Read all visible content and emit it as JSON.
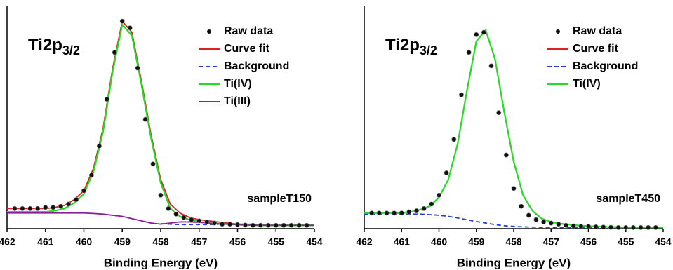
{
  "chart_data": [
    {
      "type": "line",
      "xlabel": "Binding Energy (eV)",
      "annotation": {
        "text": "Ti2p",
        "subscript": "3/2"
      },
      "sample": "sampleT150",
      "xlim": [
        462,
        454
      ],
      "ylim": [
        0,
        100
      ],
      "xticks": [
        462,
        461,
        460,
        459,
        458,
        457,
        456,
        455,
        454
      ],
      "legend": "upper right",
      "series": [
        {
          "name": "Raw data",
          "color": "#000000",
          "style": "marker",
          "x": [
            461.8,
            461.6,
            461.4,
            461.2,
            461.0,
            460.8,
            460.6,
            460.4,
            460.2,
            460.0,
            459.8,
            459.6,
            459.4,
            459.2,
            459.0,
            458.8,
            458.6,
            458.4,
            458.2,
            458.0,
            457.8,
            457.6,
            457.4,
            457.2,
            457.0,
            456.8,
            456.6,
            456.4,
            456.2,
            456.0,
            455.8,
            455.6,
            455.4,
            455.2,
            455.0,
            454.8,
            454.6,
            454.4,
            454.2
          ],
          "values": [
            9,
            9,
            9,
            9,
            9.5,
            9.5,
            10,
            11,
            13,
            17,
            24,
            37,
            58,
            79,
            93,
            90,
            72,
            49,
            29,
            15,
            9,
            6.5,
            5,
            4,
            3.5,
            3,
            2.5,
            2,
            2,
            1.8,
            1.6,
            1.5,
            1.5,
            1.5,
            1.5,
            1.5,
            1.5,
            1.5,
            1.5
          ]
        },
        {
          "name": "Curve fit",
          "color": "#e02020",
          "style": "solid",
          "x": [
            462,
            461.75,
            461.5,
            461.25,
            461,
            460.75,
            460.5,
            460.25,
            460,
            459.75,
            459.5,
            459.25,
            459,
            458.75,
            458.5,
            458.25,
            458,
            457.75,
            457.5,
            457.25,
            457,
            456.75,
            456.5,
            456.25,
            456,
            455.75,
            455.5,
            455.25,
            455,
            454.75,
            454.5,
            454.25,
            454
          ],
          "values": [
            9,
            9,
            9,
            9,
            9,
            9.5,
            10.5,
            13,
            17,
            27,
            45,
            72,
            93,
            88,
            66,
            42,
            22,
            11,
            7,
            5,
            4,
            3.5,
            3,
            2.5,
            2,
            2,
            1.8,
            1.6,
            1.5,
            1.5,
            1.5,
            1.5,
            1.5
          ]
        },
        {
          "name": "Background",
          "color": "#1f3fe0",
          "style": "dashed",
          "x": [
            462,
            461.75,
            461.5,
            461.25,
            461,
            460.75,
            460.5,
            460.25,
            460,
            459.75,
            459.5,
            459.25,
            459,
            458.75,
            458.5,
            458.25,
            458,
            457.75,
            457.5,
            457.25,
            457,
            456.75,
            456.5,
            456.25,
            456,
            455.75,
            455.5,
            455.25,
            455,
            454.75,
            454.5,
            454.25,
            454
          ],
          "values": [
            null,
            null,
            null,
            null,
            null,
            null,
            null,
            null,
            null,
            null,
            null,
            null,
            null,
            null,
            null,
            null,
            2.2,
            2,
            1.8,
            1.8,
            1.8,
            1.8,
            2,
            2.2,
            null,
            null,
            null,
            null,
            null,
            null,
            null,
            null,
            null
          ]
        },
        {
          "name": "Ti(IV)",
          "color": "#22dd22",
          "style": "solid",
          "x": [
            462,
            461.75,
            461.5,
            461.25,
            461,
            460.75,
            460.5,
            460.25,
            460,
            459.75,
            459.5,
            459.25,
            459,
            458.75,
            458.5,
            458.25,
            458,
            457.75,
            457.5,
            457.25,
            457,
            456.75,
            456.5,
            456.25,
            456,
            455.75,
            455.5,
            455.25,
            455,
            454.75,
            454.5,
            454.25,
            454
          ],
          "values": [
            7.5,
            7.5,
            7.5,
            7.5,
            7.5,
            8,
            9,
            11.5,
            15.5,
            25.5,
            43.5,
            70.5,
            91.5,
            86.5,
            64.5,
            40.5,
            20.5,
            9,
            5.5,
            4,
            3,
            2.5,
            2.2,
            2,
            1.8,
            1.6,
            1.5,
            1.5,
            1.5,
            1.5,
            1.5,
            1.5,
            1.5
          ]
        },
        {
          "name": "Ti(III)",
          "color": "#8a1f9a",
          "style": "solid",
          "x": [
            462,
            461.75,
            461.5,
            461.25,
            461,
            460.75,
            460.5,
            460.25,
            460,
            459.75,
            459.5,
            459.25,
            459,
            458.75,
            458.5,
            458.25,
            458,
            457.75,
            457.5,
            457.25,
            457,
            456.75,
            456.5,
            456.25,
            456,
            455.75,
            455.5,
            455.25,
            455,
            454.75,
            454.5,
            454.25,
            454
          ],
          "values": [
            7,
            7,
            7,
            7,
            7,
            7,
            7,
            7,
            7,
            6.8,
            6.5,
            6,
            5.5,
            4.5,
            3.5,
            2.5,
            2,
            2.5,
            3,
            3,
            2.8,
            2.5,
            2.2,
            2,
            1.8,
            1.6,
            1.5,
            1.5,
            1.5,
            1.5,
            1.5,
            1.5,
            1.5
          ]
        }
      ]
    },
    {
      "type": "line",
      "xlabel": "Binding Energy (eV)",
      "annotation": {
        "text": "Ti2p",
        "subscript": "3/2"
      },
      "sample": "sampleT450",
      "xlim": [
        462,
        454
      ],
      "ylim": [
        0,
        100
      ],
      "xticks": [
        462,
        461,
        460,
        459,
        458,
        457,
        456,
        455,
        454
      ],
      "legend": "upper right",
      "series": [
        {
          "name": "Raw data",
          "color": "#000000",
          "style": "marker",
          "x": [
            461.8,
            461.6,
            461.4,
            461.2,
            461.0,
            460.8,
            460.6,
            460.4,
            460.2,
            460.0,
            459.8,
            459.6,
            459.4,
            459.2,
            459.0,
            458.8,
            458.6,
            458.4,
            458.2,
            458.0,
            457.8,
            457.6,
            457.4,
            457.2,
            457.0,
            456.8,
            456.6,
            456.4,
            456.2,
            456.0,
            455.8,
            455.6,
            455.4,
            455.2,
            455.0,
            454.8,
            454.6,
            454.4,
            454.2
          ],
          "values": [
            7,
            7,
            7,
            7,
            7,
            7.5,
            8,
            9,
            11,
            15,
            25,
            40,
            60,
            79,
            87,
            88,
            73,
            52,
            33,
            18,
            10,
            6,
            4,
            3,
            2.5,
            2,
            1.5,
            1.2,
            1,
            1,
            0.8,
            0.7,
            0.6,
            0.5,
            0.5,
            0.5,
            0.5,
            0.5,
            0.5
          ]
        },
        {
          "name": "Curve fit",
          "color": "#e02020",
          "style": "solid",
          "x": [
            462,
            461.75,
            461.5,
            461.25,
            461,
            460.75,
            460.5,
            460.25,
            460,
            459.75,
            459.5,
            459.25,
            459,
            458.75,
            458.5,
            458.25,
            458,
            457.75,
            457.5,
            457.25,
            457,
            456.75,
            456.5,
            456.25,
            456,
            455.75,
            455.5,
            455.25,
            455,
            454.75,
            454.5,
            454.25,
            454
          ],
          "values": [
            7,
            7,
            7,
            7,
            7,
            7.5,
            8.5,
            10,
            14,
            22,
            38,
            62,
            84,
            89,
            76,
            52,
            30,
            15,
            8,
            4.5,
            3,
            2.2,
            1.8,
            1.4,
            1.1,
            1,
            0.8,
            0.7,
            0.6,
            0.5,
            0.5,
            0.5,
            0.5
          ]
        },
        {
          "name": "Background",
          "color": "#1f3fe0",
          "style": "dashed",
          "x": [
            462,
            461.75,
            461.5,
            461.25,
            461,
            460.75,
            460.5,
            460.25,
            460,
            459.75,
            459.5,
            459.25,
            459,
            458.75,
            458.5,
            458.25,
            458,
            457.75,
            457.5,
            457.25,
            457,
            456.75,
            456.5,
            456.25,
            456,
            455.75,
            455.5,
            455.25,
            455,
            454.75,
            454.5,
            454.25,
            454
          ],
          "values": [
            6.5,
            6.5,
            6.5,
            6.5,
            6.5,
            6.5,
            6.5,
            6.3,
            6,
            5.5,
            4.8,
            4,
            3.2,
            2.5,
            1.8,
            1.3,
            1,
            0.8,
            0.7,
            0.6,
            0.6,
            0.5,
            0.5,
            0.5,
            0.5,
            0.5,
            0.5,
            0.5,
            0.5,
            0.5,
            0.5,
            0.5,
            0.5
          ]
        },
        {
          "name": "Ti(IV)",
          "color": "#22dd22",
          "style": "solid",
          "x": [
            462,
            461.75,
            461.5,
            461.25,
            461,
            460.75,
            460.5,
            460.25,
            460,
            459.75,
            459.5,
            459.25,
            459,
            458.75,
            458.5,
            458.25,
            458,
            457.75,
            457.5,
            457.25,
            457,
            456.75,
            456.5,
            456.25,
            456,
            455.75,
            455.5,
            455.25,
            455,
            454.75,
            454.5,
            454.25,
            454
          ],
          "values": [
            7,
            7,
            7,
            7,
            7,
            7.5,
            8.5,
            10,
            14,
            22,
            38,
            62,
            84,
            89,
            76,
            52,
            30,
            15,
            8,
            4.5,
            3,
            2.2,
            1.8,
            1.4,
            1.1,
            1,
            0.8,
            0.7,
            0.6,
            0.5,
            0.5,
            0.5,
            0.5
          ]
        }
      ]
    }
  ]
}
